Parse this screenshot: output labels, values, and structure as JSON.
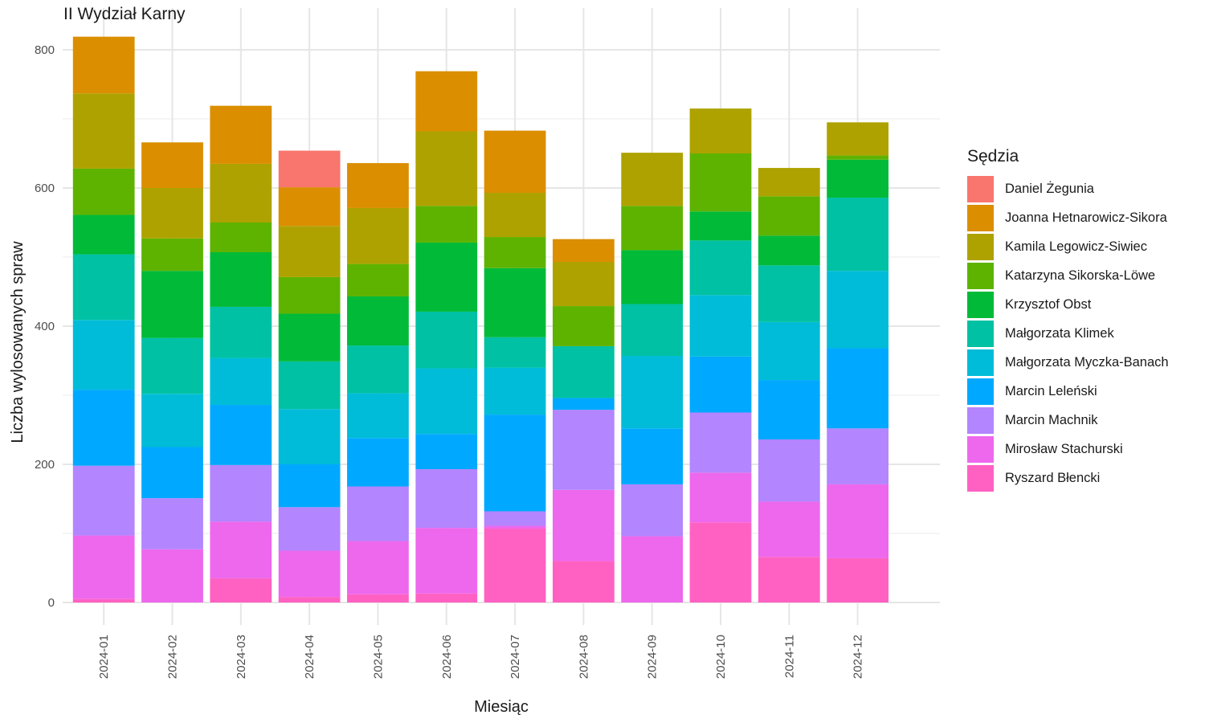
{
  "chart_data": {
    "type": "bar",
    "stacked": true,
    "title": "II Wydział Karny",
    "xlabel": "Miesiąc",
    "ylabel": "Liczba wylosowanych spraw",
    "ylim": [
      0,
      840
    ],
    "yticks": [
      0,
      200,
      400,
      600,
      800
    ],
    "grid": true,
    "legend_position": "right",
    "legend_title": "Sędzia",
    "categories": [
      "2024-01",
      "2024-02",
      "2024-03",
      "2024-04",
      "2024-05",
      "2024-06",
      "2024-07",
      "2024-08",
      "2024-09",
      "2024-10",
      "2024-11",
      "2024-12"
    ],
    "series": [
      {
        "name": "Ryszard Błencki",
        "color": "#FF61C3",
        "values": [
          5,
          0,
          35,
          8,
          12,
          13,
          107,
          60,
          0,
          116,
          66,
          64
        ]
      },
      {
        "name": "Mirosław Stachurski",
        "color": "#ED68ED",
        "values": [
          92,
          77,
          82,
          67,
          77,
          95,
          4,
          103,
          96,
          72,
          80,
          107
        ]
      },
      {
        "name": "Marcin Machnik",
        "color": "#B385FF",
        "values": [
          101,
          74,
          82,
          63,
          79,
          85,
          21,
          116,
          75,
          87,
          90,
          81
        ]
      },
      {
        "name": "Marcin Leleński",
        "color": "#00A9FF",
        "values": [
          110,
          74,
          87,
          62,
          70,
          51,
          140,
          17,
          81,
          81,
          86,
          116
        ]
      },
      {
        "name": "Małgorzata Myczka-Banach",
        "color": "#00BCD8",
        "values": [
          101,
          77,
          68,
          80,
          65,
          95,
          68,
          0,
          105,
          89,
          84,
          112
        ]
      },
      {
        "name": "Małgorzata Klimek",
        "color": "#00C1A3",
        "values": [
          95,
          81,
          74,
          69,
          69,
          82,
          44,
          75,
          75,
          79,
          82,
          106
        ]
      },
      {
        "name": "Krzysztof Obst",
        "color": "#00BA38",
        "values": [
          57,
          97,
          79,
          69,
          71,
          100,
          100,
          0,
          78,
          42,
          43,
          55
        ]
      },
      {
        "name": "Katarzyna Sikorska-Löwe",
        "color": "#5EB300",
        "values": [
          67,
          47,
          43,
          53,
          47,
          53,
          45,
          58,
          64,
          84,
          57,
          6
        ]
      },
      {
        "name": "Kamila Legowicz-Siwiec",
        "color": "#AEA200",
        "values": [
          109,
          73,
          85,
          74,
          81,
          108,
          64,
          64,
          77,
          65,
          41,
          48
        ]
      },
      {
        "name": "Joanna Hetnarowicz-Sikora",
        "color": "#DB8E00",
        "values": [
          82,
          66,
          84,
          56,
          65,
          87,
          90,
          33,
          0,
          0,
          0,
          0
        ]
      },
      {
        "name": "Daniel Żegunia",
        "color": "#F8766D",
        "values": [
          0,
          0,
          0,
          53,
          0,
          0,
          0,
          0,
          0,
          0,
          0,
          0
        ]
      }
    ]
  }
}
